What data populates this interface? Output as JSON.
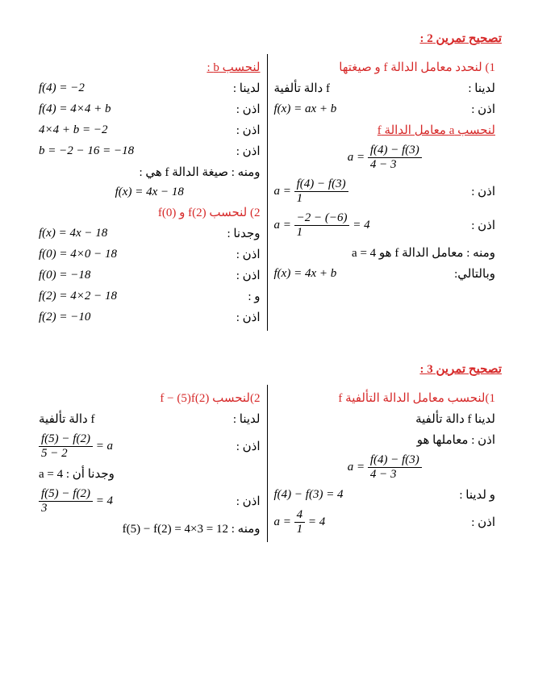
{
  "colors": {
    "red": "#d62828",
    "black": "#000000",
    "bg": "#ffffff"
  },
  "ex2": {
    "title": "تصحيح تمرين 2 :",
    "right": {
      "q1": "1) لنحدد معامل الدالة  f  و صيغتها",
      "l1_label": "لدينا :",
      "l1_math": "f  دالة تألفية",
      "l2_label": "اذن :",
      "l2_math": "f(x) = ax + b",
      "sub_a": "لنحسب a  معامل الدالة  f",
      "frac1_num": "f(4) − f(3)",
      "frac1_den": "4 − 3",
      "frac1_pre": "a =",
      "l3_label": "اذن :",
      "frac2_num": "f(4) − f(3)",
      "frac2_den": "1",
      "frac2_pre": "a =",
      "l4_label": "اذن :",
      "frac3_num": "−2 − (−6)",
      "frac3_den": "1",
      "frac3_post": "= 4",
      "frac3_pre": "a =",
      "l5": "ومنه : معامل الدالة   f   هو  a = 4",
      "l6_label": "وبالتالي:",
      "l6_math": "f(x) = 4x + b"
    },
    "left": {
      "sub_b": "لنحسب b :",
      "l1_label": "لدينا :",
      "l1_math": "f(4) = −2",
      "l2_label": "اذن :",
      "l2_math": "f(4) = 4×4 + b",
      "l3_label": "اذن :",
      "l3_math": "4×4 + b = −2",
      "l4_label": "اذن :",
      "l4_math": "b = −2 − 16 = −18",
      "l5": "ومنه : صيغة الدالة   f   هي :",
      "l6_math": "f(x) = 4x − 18",
      "q2": "2) لنحسب (2)f و (0)f",
      "l7_label": "وجدنا :",
      "l7_math": "f(x) = 4x − 18",
      "l8_label": "اذن :",
      "l8_math": "f(0) = 4×0 − 18",
      "l9_label": "اذن :",
      "l9_math": "f(0) = −18",
      "l10_label": "و :",
      "l10_math": "f(2) = 4×2 − 18",
      "l11_label": "اذن :",
      "l11_math": "f(2) = −10"
    }
  },
  "ex3": {
    "title": "تصحيح تمرين 3 :",
    "right": {
      "q1": "1)لنحسب معامل الدالة التألفية  f",
      "l1": "لدينا f  دالة تألفية",
      "l2": "اذن : معاملها هو",
      "frac1_num": "f(4) − f(3)",
      "frac1_den": "4 − 3",
      "frac1_pre": "a =",
      "l3_label": "و لدينا :",
      "l3_math": "f(4) − f(3) = 4",
      "l4_label": "اذن :",
      "frac2_num": "4",
      "frac2_den": "1",
      "frac2_post": "= 4",
      "frac2_pre": "a ="
    },
    "left": {
      "q2": "2)لنحسب (2)f − (5)f",
      "l1_label": "لدينا :",
      "l1_math": "f  دالة تألفية",
      "l2_label": "اذن :",
      "frac1_num": "f(5) − f(2)",
      "frac1_den": "5 − 2",
      "frac1_post": "= a",
      "l3": "وجدنا أن :  a = 4",
      "l4_label": "اذن :",
      "frac2_num": "f(5) − f(2)",
      "frac2_den": "3",
      "frac2_post": "= 4",
      "l5": "ومنه :  f(5) − f(2) = 4×3 = 12"
    }
  }
}
